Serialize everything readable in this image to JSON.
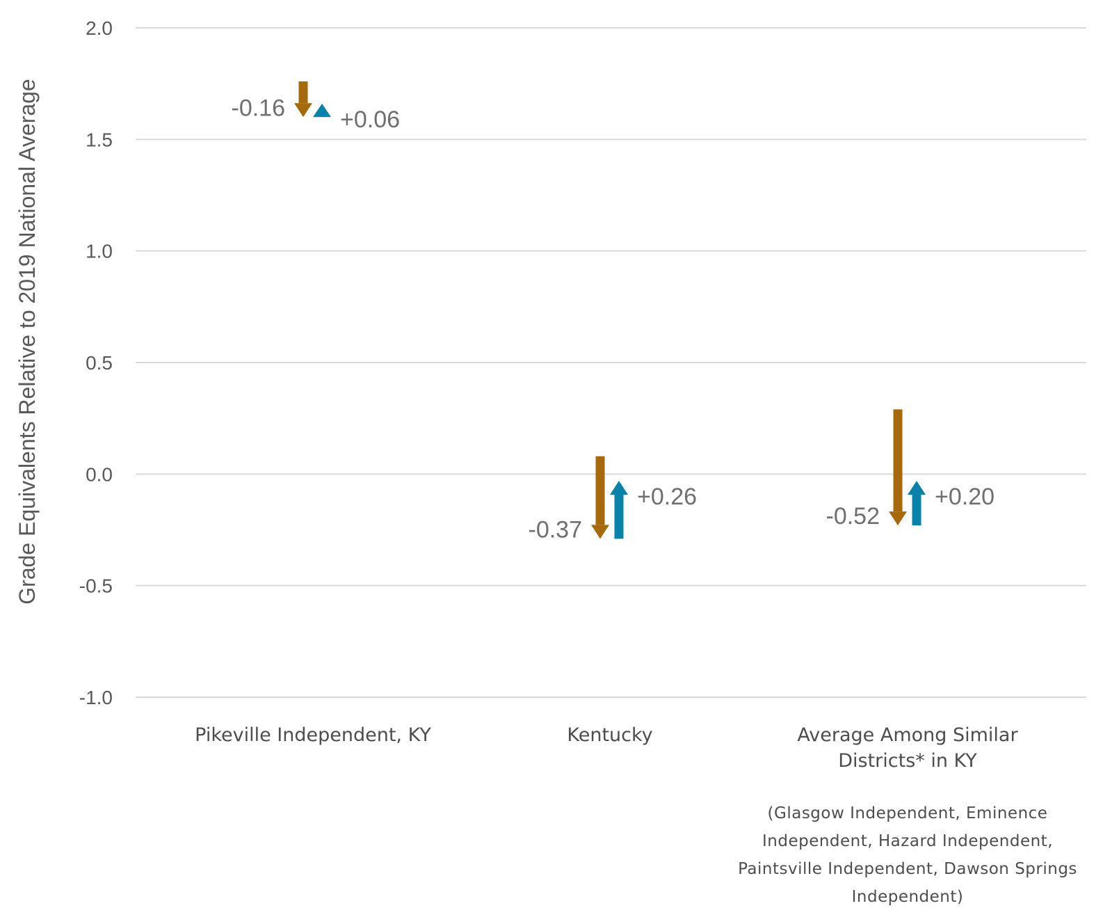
{
  "chart_data": {
    "type": "arrow",
    "ylabel": "Grade Equivalents Relative to 2019 National Average",
    "ylim": [
      -1.0,
      2.0
    ],
    "yticks": [
      "2.0",
      "1.5",
      "1.0",
      "0.5",
      "0.0",
      "-0.5",
      "-1.0"
    ],
    "grid": true,
    "colors": {
      "decline": "#A66A0C",
      "recovery": "#0882A8",
      "grid": "#d9d9d9"
    },
    "categories": [
      {
        "label_lines": [
          "Pikeville Independent, KY"
        ],
        "note_lines": []
      },
      {
        "label_lines": [
          "Kentucky"
        ],
        "note_lines": []
      },
      {
        "label_lines": [
          "Average Among Similar",
          "Districts* in KY"
        ],
        "note_lines": [
          "(Glasgow Independent, Eminence",
          "Independent, Hazard Independent,",
          "Paintsville Independent, Dawson Springs",
          "Independent)"
        ]
      }
    ],
    "series": [
      {
        "name": "",
        "role": "decline",
        "start": [
          1.76,
          0.08,
          0.29
        ],
        "end": [
          1.6,
          -0.29,
          -0.23
        ],
        "labels": [
          "-0.16",
          "-0.37",
          "-0.52"
        ]
      },
      {
        "name": "",
        "role": "recovery",
        "start": [
          1.6,
          -0.29,
          -0.23
        ],
        "end": [
          1.66,
          -0.03,
          -0.03
        ],
        "labels": [
          "+0.06",
          "+0.26",
          "+0.20"
        ]
      }
    ]
  }
}
